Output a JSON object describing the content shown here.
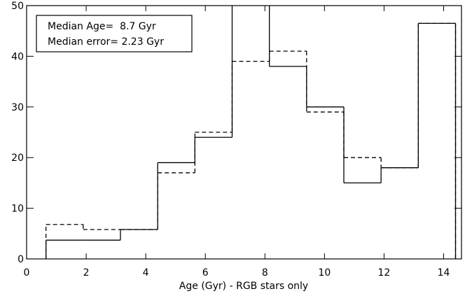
{
  "chart_data": {
    "type": "histogram",
    "xlabel": "Age (Gyr) - RGB stars only",
    "annotations": [
      "Median Age=  8.7 Gyr",
      "Median error= 2.23 Gyr"
    ],
    "bins": [
      0.65,
      1.9,
      3.15,
      4.4,
      5.65,
      6.9,
      8.15,
      9.4,
      10.65,
      11.9,
      13.15,
      14.4
    ],
    "series": [
      {
        "style": "solid",
        "color": "#000000",
        "values": [
          3.7,
          3.7,
          5.8,
          19,
          24,
          55,
          38,
          30,
          15,
          18,
          46.5
        ]
      },
      {
        "style": "dashed",
        "color": "#000000",
        "values": [
          6.8,
          5.8,
          5.8,
          17,
          25,
          39,
          41,
          29,
          20,
          18,
          46.5
        ]
      }
    ],
    "xlim": [
      0,
      14.6
    ],
    "ylim": [
      0,
      50
    ],
    "xticks": [
      0,
      2,
      4,
      6,
      8,
      10,
      12,
      14
    ],
    "yticks": [
      0,
      10,
      20,
      30,
      40,
      50
    ]
  }
}
